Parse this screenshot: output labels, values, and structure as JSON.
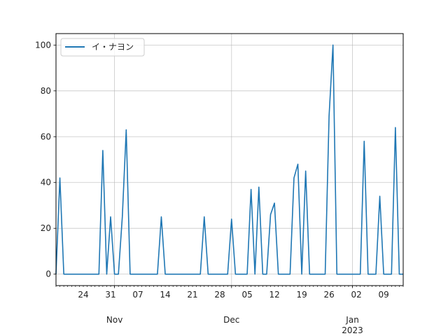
{
  "chart_data": {
    "type": "line",
    "x_type": "date",
    "x": [
      "2022-10-17",
      "2022-10-18",
      "2022-10-19",
      "2022-10-20",
      "2022-10-21",
      "2022-10-22",
      "2022-10-23",
      "2022-10-24",
      "2022-10-25",
      "2022-10-26",
      "2022-10-27",
      "2022-10-28",
      "2022-10-29",
      "2022-10-30",
      "2022-10-31",
      "2022-11-01",
      "2022-11-02",
      "2022-11-03",
      "2022-11-04",
      "2022-11-05",
      "2022-11-06",
      "2022-11-07",
      "2022-11-08",
      "2022-11-09",
      "2022-11-10",
      "2022-11-11",
      "2022-11-12",
      "2022-11-13",
      "2022-11-14",
      "2022-11-15",
      "2022-11-16",
      "2022-11-17",
      "2022-11-18",
      "2022-11-19",
      "2022-11-20",
      "2022-11-21",
      "2022-11-22",
      "2022-11-23",
      "2022-11-24",
      "2022-11-25",
      "2022-11-26",
      "2022-11-27",
      "2022-11-28",
      "2022-11-29",
      "2022-11-30",
      "2022-12-01",
      "2022-12-02",
      "2022-12-03",
      "2022-12-04",
      "2022-12-05",
      "2022-12-06",
      "2022-12-07",
      "2022-12-08",
      "2022-12-09",
      "2022-12-10",
      "2022-12-11",
      "2022-12-12",
      "2022-12-13",
      "2022-12-14",
      "2022-12-15",
      "2022-12-16",
      "2022-12-17",
      "2022-12-18",
      "2022-12-19",
      "2022-12-20",
      "2022-12-21",
      "2022-12-22",
      "2022-12-23",
      "2022-12-24",
      "2022-12-25",
      "2022-12-26",
      "2022-12-27",
      "2022-12-28",
      "2022-12-29",
      "2022-12-30",
      "2022-12-31",
      "2023-01-01",
      "2023-01-02",
      "2023-01-03",
      "2023-01-04",
      "2023-01-05",
      "2023-01-06",
      "2023-01-07",
      "2023-01-08",
      "2023-01-09",
      "2023-01-10",
      "2023-01-11",
      "2023-01-12",
      "2023-01-13",
      "2023-01-14"
    ],
    "series": [
      {
        "name": "イ・ナヨン",
        "color": "#1f77b4",
        "values": [
          0,
          42,
          0,
          0,
          0,
          0,
          0,
          0,
          0,
          0,
          0,
          0,
          54,
          0,
          25,
          0,
          0,
          25,
          63,
          0,
          0,
          0,
          0,
          0,
          0,
          0,
          0,
          25,
          0,
          0,
          0,
          0,
          0,
          0,
          0,
          0,
          0,
          0,
          25,
          0,
          0,
          0,
          0,
          0,
          0,
          24,
          0,
          0,
          0,
          0,
          37,
          0,
          38,
          0,
          0,
          26,
          31,
          0,
          0,
          0,
          0,
          42,
          48,
          0,
          45,
          0,
          0,
          0,
          0,
          0,
          69,
          100,
          0,
          0,
          0,
          0,
          0,
          0,
          0,
          58,
          0,
          0,
          0,
          34,
          0,
          0,
          0,
          64,
          0,
          0
        ]
      }
    ],
    "xlim": [
      "2022-10-17",
      "2023-01-14"
    ],
    "ylim": [
      -5,
      105
    ],
    "yticks": [
      0,
      20,
      40,
      60,
      80,
      100
    ],
    "x_minor_labels": [
      {
        "date": "2022-10-24",
        "label": "24"
      },
      {
        "date": "2022-10-31",
        "label": "31"
      },
      {
        "date": "2022-11-07",
        "label": "07"
      },
      {
        "date": "2022-11-14",
        "label": "14"
      },
      {
        "date": "2022-11-21",
        "label": "21"
      },
      {
        "date": "2022-11-28",
        "label": "28"
      },
      {
        "date": "2022-12-05",
        "label": "05"
      },
      {
        "date": "2022-12-12",
        "label": "12"
      },
      {
        "date": "2022-12-19",
        "label": "19"
      },
      {
        "date": "2022-12-26",
        "label": "26"
      },
      {
        "date": "2023-01-02",
        "label": "02"
      },
      {
        "date": "2023-01-09",
        "label": "09"
      }
    ],
    "x_major_labels": [
      {
        "date": "2022-11-01",
        "label": "Nov"
      },
      {
        "date": "2022-12-01",
        "label": "Dec"
      },
      {
        "date": "2023-01-01",
        "label": "Jan",
        "sub": "2023"
      }
    ],
    "title": "",
    "xlabel": "",
    "ylabel": "",
    "grid": true,
    "legend": "upper-left"
  }
}
